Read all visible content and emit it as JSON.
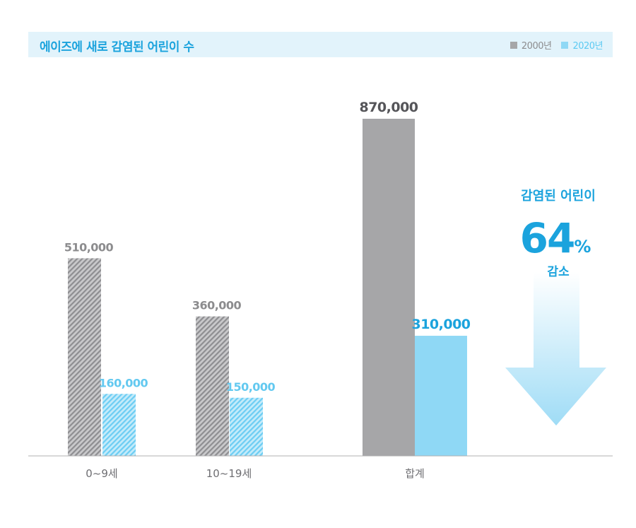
{
  "title": "에이즈에 새로 감염된 어린이 수",
  "legend": [
    {
      "label": "2000년",
      "color": "#a6a6a8"
    },
    {
      "label": "2020년",
      "color": "#8fd8f5"
    }
  ],
  "colors": {
    "gray": "#a6a6a8",
    "blue": "#8fd8f5",
    "accent": "#1ba3dd",
    "gray_text": "#8c8c8e",
    "dark_text": "#555559"
  },
  "annotation": {
    "line1": "감염된 어린이",
    "big": "64",
    "unit": "%",
    "line2": "감소"
  },
  "chart_data": {
    "type": "bar",
    "title": "에이즈에 새로 감염된 어린이 수",
    "categories": [
      "0~9세",
      "10~19세",
      "합계"
    ],
    "series": [
      {
        "name": "2000년",
        "values": [
          510000,
          360000,
          870000
        ]
      },
      {
        "name": "2020년",
        "values": [
          160000,
          150000,
          310000
        ]
      }
    ],
    "value_labels": [
      [
        "510,000",
        "360,000",
        "870,000"
      ],
      [
        "160,000",
        "150,000",
        "310,000"
      ]
    ],
    "ylim": [
      0,
      870000
    ],
    "grid": false,
    "legend_position": "top-right",
    "style": {
      "hatched_categories": [
        "0~9세",
        "10~19세"
      ],
      "solid_categories": [
        "합계"
      ]
    }
  }
}
